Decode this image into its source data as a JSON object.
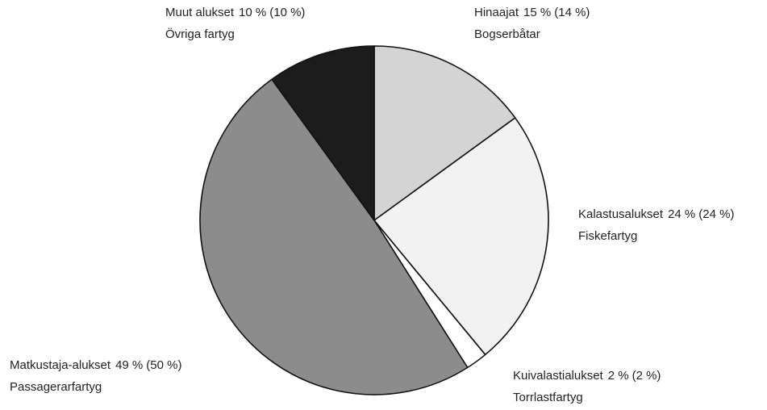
{
  "chart_data": {
    "type": "pie",
    "categories": [
      "Hinaajat",
      "Kalastusalukset",
      "Kuivalastialukset",
      "Matkustaja-alukset",
      "Muut alukset"
    ],
    "categories_sv": [
      "Bogserbåtar",
      "Fiskefartyg",
      "Torrlastfartyg",
      "Passagerarfartyg",
      "Övriga fartyg"
    ],
    "values": [
      15,
      24,
      2,
      49,
      10
    ],
    "value_labels": [
      "15 %",
      "24 %",
      "2 %",
      "49 %",
      "10 %"
    ],
    "previous_values": [
      14,
      24,
      2,
      50,
      10
    ],
    "previous_value_labels": [
      "(14 %)",
      "(24 %)",
      "(2 %)",
      "(50 %)",
      "(10 %)"
    ],
    "colors": [
      "#d4d4d4",
      "#f2f2f2",
      "#ffffff",
      "#8c8c8c",
      "#1c1c1c"
    ]
  }
}
